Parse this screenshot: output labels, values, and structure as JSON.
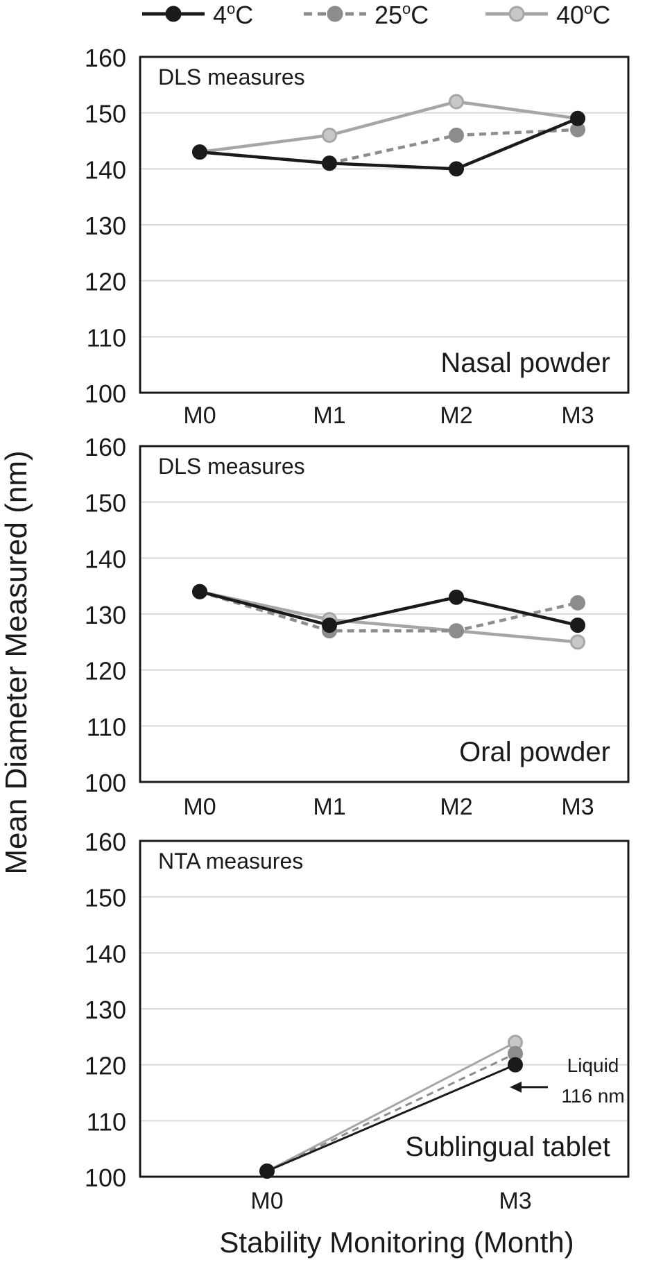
{
  "legend": {
    "items": [
      {
        "label_base": "4",
        "label_sup": "o",
        "label_unit": "C",
        "color": "#1a1a1a",
        "dashed": false,
        "marker_fill": "#1a1a1a"
      },
      {
        "label_base": "25",
        "label_sup": "o",
        "label_unit": "C",
        "color": "#8c8c8c",
        "dashed": true,
        "marker_fill": "#8c8c8c"
      },
      {
        "label_base": "40",
        "label_sup": "o",
        "label_unit": "C",
        "color": "#a6a6a6",
        "dashed": false,
        "marker_fill": "#c8c8c8"
      }
    ]
  },
  "y_axis_label": "Mean Diameter Measured (nm)",
  "x_axis_label": "Stability Monitoring (Month)",
  "arrow_annotation": {
    "line1": "Liquid",
    "line2": "116 nm"
  },
  "chart_data": [
    {
      "type": "line",
      "title": "DLS measures",
      "subtitle": "Nasal powder",
      "categories": [
        "M0",
        "M1",
        "M2",
        "M3"
      ],
      "ylim": [
        100,
        160
      ],
      "yticks": [
        100,
        110,
        120,
        130,
        140,
        150,
        160
      ],
      "grid": true,
      "series": [
        {
          "name": "4°C",
          "values": [
            143,
            141,
            140,
            149
          ]
        },
        {
          "name": "25°C",
          "values": [
            143,
            141,
            146,
            147
          ]
        },
        {
          "name": "40°C",
          "values": [
            143,
            146,
            152,
            149
          ]
        }
      ]
    },
    {
      "type": "line",
      "title": "DLS measures",
      "subtitle": "Oral powder",
      "categories": [
        "M0",
        "M1",
        "M2",
        "M3"
      ],
      "ylim": [
        100,
        160
      ],
      "yticks": [
        100,
        110,
        120,
        130,
        140,
        150,
        160
      ],
      "grid": true,
      "series": [
        {
          "name": "4°C",
          "values": [
            134,
            128,
            133,
            128
          ]
        },
        {
          "name": "25°C",
          "values": [
            134,
            127,
            127,
            132
          ]
        },
        {
          "name": "40°C",
          "values": [
            134,
            129,
            127,
            125
          ]
        }
      ]
    },
    {
      "type": "line",
      "title": "NTA measures",
      "subtitle": "Sublingual tablet",
      "categories": [
        "M0",
        "M3"
      ],
      "ylim": [
        100,
        160
      ],
      "yticks": [
        100,
        110,
        120,
        130,
        140,
        150,
        160
      ],
      "grid": true,
      "series": [
        {
          "name": "4°C",
          "values": [
            101,
            120
          ]
        },
        {
          "name": "25°C",
          "values": [
            101,
            122
          ]
        },
        {
          "name": "40°C",
          "values": [
            101,
            124
          ]
        }
      ],
      "annotation": {
        "text": "Liquid 116 nm",
        "value": 116
      }
    }
  ]
}
